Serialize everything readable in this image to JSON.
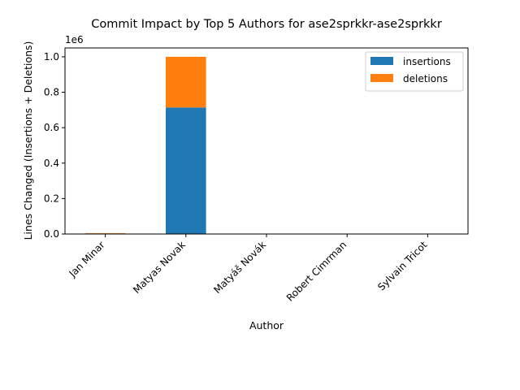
{
  "chart_data": {
    "type": "bar",
    "stacked": true,
    "title": "Commit Impact by Top 5 Authors for ase2sprkkr-ase2sprkkr",
    "xlabel": "Author",
    "ylabel": "Lines Changed (Insertions + Deletions)",
    "y_offset_label": "1e6",
    "categories": [
      "Jan Minar",
      "Matyas Novak",
      "Matyáš Novák",
      "Robert Cimrman",
      "Sylvain Tricot"
    ],
    "series": [
      {
        "name": "insertions",
        "color": "#1f77b4",
        "values": [
          3000,
          714000,
          500,
          300,
          200
        ]
      },
      {
        "name": "deletions",
        "color": "#ff7f0e",
        "values": [
          2000,
          286000,
          300,
          200,
          100
        ]
      }
    ],
    "ylim": [
      0,
      1050000
    ],
    "yticks": [
      0,
      200000,
      400000,
      600000,
      800000,
      1000000
    ],
    "ytick_labels": [
      "0.0",
      "0.2",
      "0.4",
      "0.6",
      "0.8",
      "1.0"
    ],
    "legend_position": "top-right",
    "grid": false
  }
}
